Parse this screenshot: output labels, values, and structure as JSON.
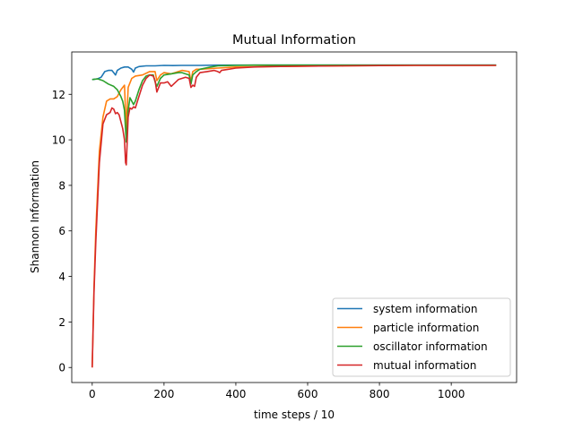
{
  "chart_data": {
    "type": "line",
    "title": "Mutual Information",
    "xlabel": "time steps / 10",
    "ylabel": "Shannon Information",
    "xlim": [
      -57,
      1182
    ],
    "ylim": [
      -0.66,
      13.86
    ],
    "xticks": [
      0,
      200,
      400,
      600,
      800,
      1000
    ],
    "yticks": [
      0,
      2,
      4,
      6,
      8,
      10,
      12
    ],
    "grid": false,
    "legend_position": "lower-right",
    "series": [
      {
        "name": "system information",
        "color": "#1f77b4",
        "x": [
          0,
          15,
          25,
          35,
          45,
          55,
          60,
          65,
          70,
          80,
          90,
          100,
          110,
          115,
          120,
          130,
          150,
          175,
          200,
          225,
          250,
          275,
          300,
          350,
          400,
          450,
          500,
          600,
          700,
          800,
          900,
          1000,
          1125
        ],
        "y": [
          12.65,
          12.68,
          12.75,
          13.0,
          13.05,
          13.05,
          12.95,
          12.85,
          13.05,
          13.15,
          13.2,
          13.2,
          13.1,
          12.98,
          13.15,
          13.22,
          13.25,
          13.25,
          13.27,
          13.26,
          13.27,
          13.27,
          13.27,
          13.28,
          13.28,
          13.28,
          13.28,
          13.28,
          13.28,
          13.28,
          13.28,
          13.28,
          13.28
        ]
      },
      {
        "name": "particle information",
        "color": "#ff7f0e",
        "x": [
          0,
          5,
          10,
          20,
          30,
          40,
          50,
          60,
          70,
          80,
          85,
          90,
          95,
          100,
          110,
          120,
          140,
          160,
          175,
          180,
          190,
          200,
          220,
          250,
          270,
          275,
          280,
          290,
          300,
          350,
          400,
          500,
          600,
          700,
          800,
          900,
          1000,
          1125
        ],
        "y": [
          0,
          3.5,
          6.0,
          9.5,
          11.0,
          11.7,
          11.8,
          11.8,
          11.9,
          12.2,
          12.3,
          12.4,
          10.4,
          12.3,
          12.7,
          12.8,
          12.85,
          13.0,
          13.0,
          12.6,
          12.85,
          12.95,
          12.9,
          13.05,
          13.0,
          12.55,
          13.0,
          13.1,
          13.1,
          13.15,
          13.2,
          13.22,
          13.24,
          13.25,
          13.26,
          13.27,
          13.27,
          13.27
        ]
      },
      {
        "name": "oscillator information",
        "color": "#2ca02c",
        "x": [
          0,
          15,
          30,
          45,
          60,
          70,
          80,
          85,
          90,
          95,
          100,
          105,
          110,
          115,
          120,
          130,
          140,
          150,
          160,
          170,
          175,
          180,
          190,
          200,
          220,
          240,
          250,
          270,
          275,
          280,
          290,
          300,
          330,
          350,
          400,
          450,
          500,
          600,
          700,
          800,
          900,
          1000,
          1125
        ],
        "y": [
          12.65,
          12.68,
          12.6,
          12.45,
          12.35,
          12.2,
          11.9,
          11.7,
          11.3,
          9.9,
          11.3,
          11.85,
          11.7,
          11.55,
          11.7,
          12.2,
          12.6,
          12.8,
          12.85,
          12.85,
          12.55,
          12.35,
          12.7,
          12.85,
          12.9,
          12.95,
          12.95,
          12.85,
          12.45,
          12.85,
          13.0,
          13.1,
          13.2,
          13.25,
          13.27,
          13.28,
          13.28,
          13.28,
          13.28,
          13.28,
          13.28,
          13.28,
          13.28
        ]
      },
      {
        "name": "mutual information",
        "color": "#d62728",
        "x": [
          0,
          5,
          10,
          20,
          30,
          40,
          50,
          55,
          60,
          65,
          70,
          75,
          80,
          85,
          90,
          93,
          95,
          100,
          105,
          110,
          115,
          120,
          130,
          140,
          150,
          160,
          170,
          175,
          180,
          190,
          200,
          210,
          220,
          240,
          250,
          260,
          270,
          275,
          280,
          285,
          290,
          300,
          320,
          340,
          350,
          355,
          360,
          380,
          400,
          450,
          500,
          600,
          700,
          800,
          900,
          1000,
          1125
        ],
        "y": [
          0,
          3.3,
          5.5,
          9.0,
          10.7,
          11.1,
          11.2,
          11.4,
          11.35,
          11.15,
          11.2,
          11.1,
          10.8,
          10.5,
          10.0,
          9.0,
          8.9,
          11.0,
          11.4,
          11.35,
          11.45,
          11.4,
          11.9,
          12.4,
          12.7,
          12.85,
          12.8,
          12.6,
          12.1,
          12.5,
          12.5,
          12.55,
          12.35,
          12.65,
          12.7,
          12.75,
          12.7,
          12.3,
          12.4,
          12.35,
          12.75,
          12.95,
          13.0,
          13.05,
          13.0,
          12.95,
          13.05,
          13.1,
          13.15,
          13.2,
          13.22,
          13.24,
          13.25,
          13.26,
          13.27,
          13.27,
          13.27
        ]
      }
    ]
  }
}
